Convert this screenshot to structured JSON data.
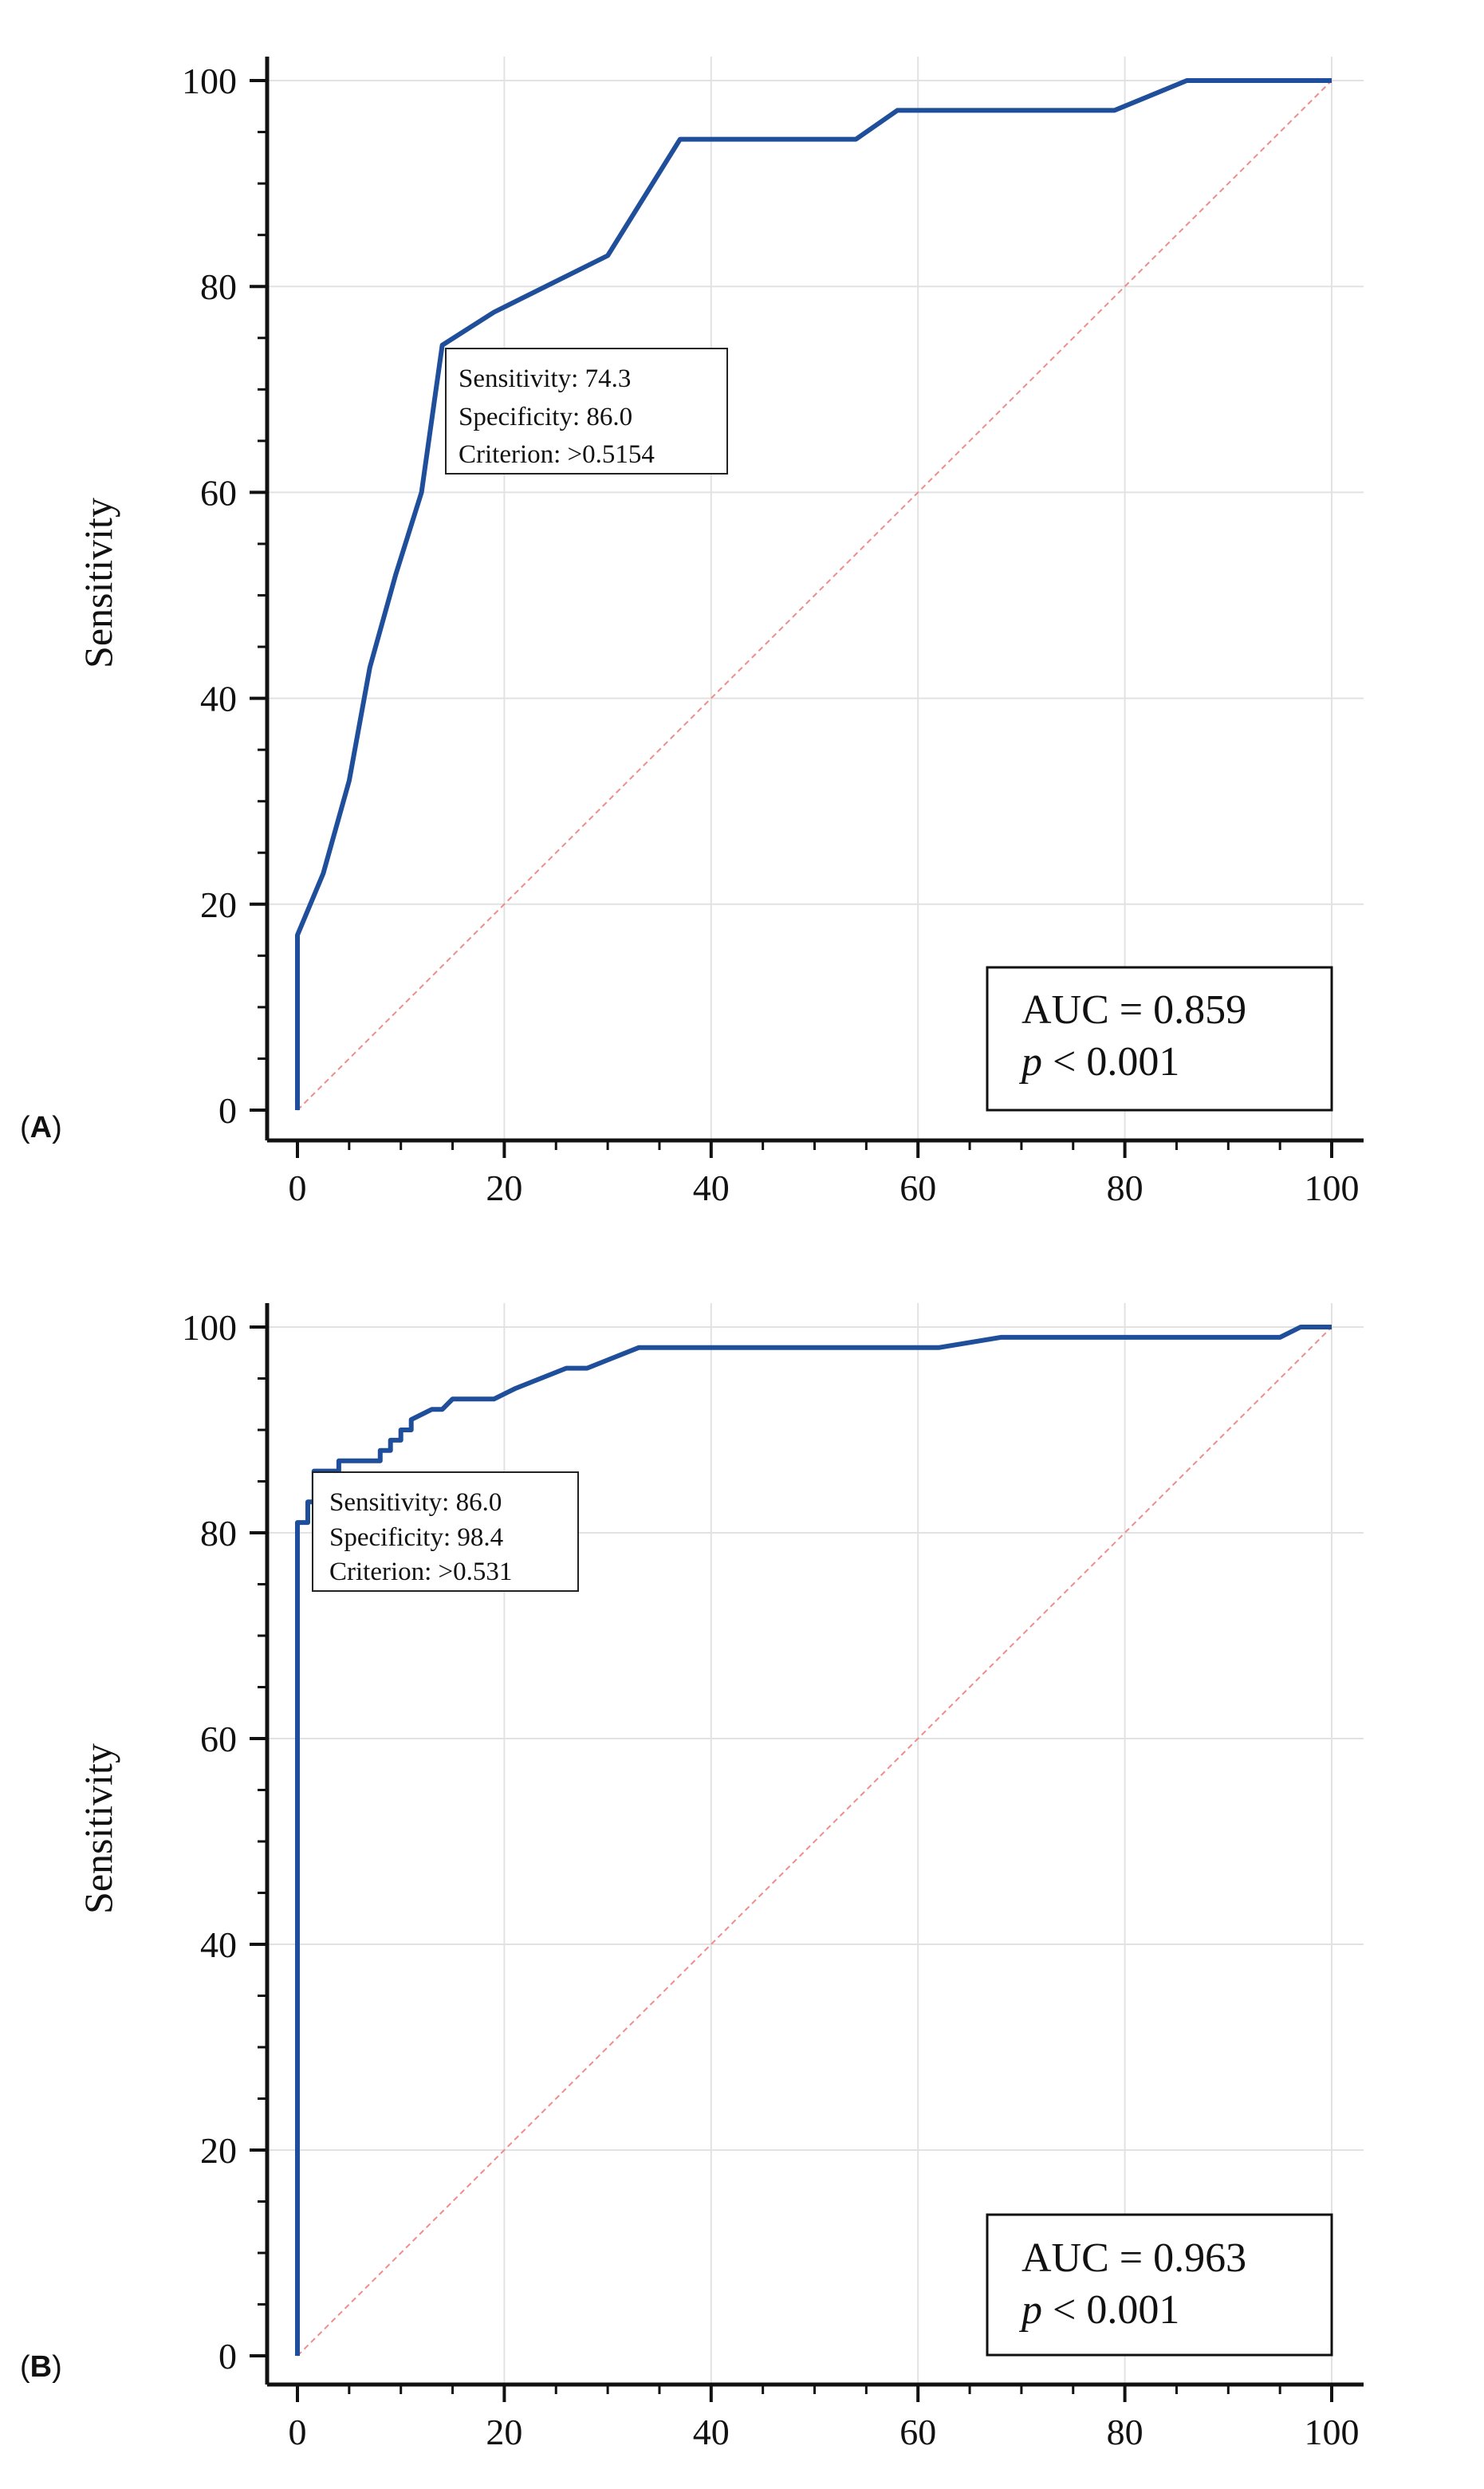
{
  "chart_data": [
    {
      "panel_label": "A",
      "type": "line",
      "ylabel": "Sensitivity",
      "xlabel": "",
      "xlim": [
        0,
        100
      ],
      "ylim": [
        0,
        100
      ],
      "x_ticks": [
        "0",
        "20",
        "40",
        "60",
        "80",
        "100"
      ],
      "y_ticks": [
        "0",
        "20",
        "40",
        "60",
        "80",
        "100"
      ],
      "grid": true,
      "reference_line": true,
      "series": [
        {
          "color": "#1f4e9a",
          "points": [
            [
              0,
              0
            ],
            [
              0,
              17
            ],
            [
              2.5,
              23
            ],
            [
              5,
              32
            ],
            [
              7,
              43
            ],
            [
              9.5,
              52
            ],
            [
              12,
              60
            ],
            [
              14,
              74.3
            ],
            [
              19,
              77.5
            ],
            [
              24,
              80
            ],
            [
              30,
              83
            ],
            [
              37,
              94.3
            ],
            [
              54,
              94.3
            ],
            [
              58,
              97.1
            ],
            [
              79,
              97.1
            ],
            [
              86,
              100
            ],
            [
              100,
              100
            ]
          ]
        }
      ],
      "annotation": [
        "Sensitivity: 74.3",
        "Specificity: 86.0",
        "Criterion: >0.5154"
      ],
      "stats": {
        "auc": "AUC = 0.859",
        "p_italic": "p",
        "p_rest": " < 0.001"
      }
    },
    {
      "panel_label": "B",
      "type": "line",
      "ylabel": "Sensitivity",
      "xlabel": "",
      "xlim": [
        0,
        100
      ],
      "ylim": [
        0,
        100
      ],
      "x_ticks": [
        "0",
        "20",
        "40",
        "60",
        "80",
        "100"
      ],
      "y_ticks": [
        "0",
        "20",
        "40",
        "60",
        "80",
        "100"
      ],
      "grid": true,
      "reference_line": true,
      "series": [
        {
          "color": "#1f4e9a",
          "points": [
            [
              0,
              0
            ],
            [
              0,
              81
            ],
            [
              1,
              81
            ],
            [
              1,
              83
            ],
            [
              1.6,
              83
            ],
            [
              1.6,
              86
            ],
            [
              4,
              86
            ],
            [
              4,
              87
            ],
            [
              8,
              87
            ],
            [
              8,
              88
            ],
            [
              9,
              88
            ],
            [
              9,
              89
            ],
            [
              10,
              89
            ],
            [
              10,
              90
            ],
            [
              11,
              90
            ],
            [
              11,
              91
            ],
            [
              13,
              92
            ],
            [
              14,
              92
            ],
            [
              15,
              93
            ],
            [
              19,
              93
            ],
            [
              21,
              94
            ],
            [
              26,
              96
            ],
            [
              28,
              96
            ],
            [
              33,
              98
            ],
            [
              62,
              98
            ],
            [
              68,
              99
            ],
            [
              95,
              99
            ],
            [
              97,
              100
            ],
            [
              100,
              100
            ]
          ]
        }
      ],
      "annotation": [
        "Sensitivity: 86.0",
        "Specificity: 98.4",
        "Criterion: >0.531"
      ],
      "stats": {
        "auc": "AUC = 0.963",
        "p_italic": "p",
        "p_rest": " < 0.001"
      }
    }
  ]
}
